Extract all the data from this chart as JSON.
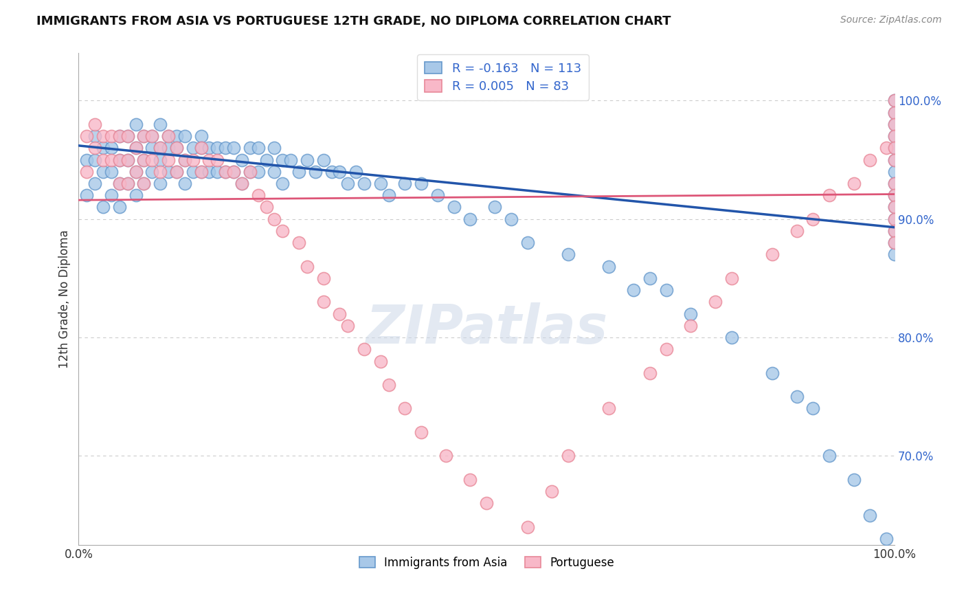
{
  "title": "IMMIGRANTS FROM ASIA VS PORTUGUESE 12TH GRADE, NO DIPLOMA CORRELATION CHART",
  "source": "Source: ZipAtlas.com",
  "ylabel": "12th Grade, No Diploma",
  "legend_blue_R": "-0.163",
  "legend_blue_N": "113",
  "legend_pink_R": "0.005",
  "legend_pink_N": "83",
  "label_blue": "Immigrants from Asia",
  "label_pink": "Portuguese",
  "ytick_labels": [
    "70.0%",
    "80.0%",
    "90.0%",
    "100.0%"
  ],
  "ytick_values": [
    0.7,
    0.8,
    0.9,
    1.0
  ],
  "xlim": [
    0.0,
    1.0
  ],
  "ylim": [
    0.625,
    1.04
  ],
  "blue_face": "#a8c8e8",
  "blue_edge": "#6699cc",
  "pink_face": "#f8b8c8",
  "pink_edge": "#e88898",
  "blue_line_color": "#2255aa",
  "pink_line_color": "#dd5577",
  "watermark": "ZIPatlas",
  "bg": "#ffffff",
  "grid_color": "#cccccc",
  "title_color": "#111111",
  "source_color": "#888888",
  "ytick_color": "#3366cc",
  "blue_trend_y0": 0.962,
  "blue_trend_y1": 0.893,
  "pink_trend_y0": 0.916,
  "pink_trend_y1": 0.921,
  "blue_x": [
    0.01,
    0.01,
    0.02,
    0.02,
    0.02,
    0.03,
    0.03,
    0.03,
    0.04,
    0.04,
    0.04,
    0.05,
    0.05,
    0.05,
    0.05,
    0.06,
    0.06,
    0.06,
    0.07,
    0.07,
    0.07,
    0.07,
    0.08,
    0.08,
    0.08,
    0.09,
    0.09,
    0.09,
    0.1,
    0.1,
    0.1,
    0.1,
    0.11,
    0.11,
    0.11,
    0.12,
    0.12,
    0.12,
    0.13,
    0.13,
    0.13,
    0.14,
    0.14,
    0.15,
    0.15,
    0.15,
    0.16,
    0.16,
    0.17,
    0.17,
    0.18,
    0.18,
    0.19,
    0.19,
    0.2,
    0.2,
    0.21,
    0.21,
    0.22,
    0.22,
    0.23,
    0.24,
    0.24,
    0.25,
    0.25,
    0.26,
    0.27,
    0.28,
    0.29,
    0.3,
    0.31,
    0.32,
    0.33,
    0.34,
    0.35,
    0.37,
    0.38,
    0.4,
    0.42,
    0.44,
    0.46,
    0.48,
    0.51,
    0.53,
    0.55,
    0.6,
    0.65,
    0.68,
    0.7,
    0.72,
    0.75,
    0.8,
    0.85,
    0.88,
    0.9,
    0.92,
    0.95,
    0.97,
    0.99,
    1.0,
    1.0,
    1.0,
    1.0,
    1.0,
    1.0,
    1.0,
    1.0,
    1.0,
    1.0,
    1.0,
    1.0,
    1.0,
    1.0
  ],
  "blue_y": [
    0.95,
    0.92,
    0.97,
    0.95,
    0.93,
    0.96,
    0.94,
    0.91,
    0.96,
    0.94,
    0.92,
    0.97,
    0.95,
    0.93,
    0.91,
    0.97,
    0.95,
    0.93,
    0.98,
    0.96,
    0.94,
    0.92,
    0.97,
    0.95,
    0.93,
    0.97,
    0.96,
    0.94,
    0.98,
    0.96,
    0.95,
    0.93,
    0.97,
    0.96,
    0.94,
    0.97,
    0.96,
    0.94,
    0.97,
    0.95,
    0.93,
    0.96,
    0.94,
    0.97,
    0.96,
    0.94,
    0.96,
    0.94,
    0.96,
    0.94,
    0.96,
    0.94,
    0.96,
    0.94,
    0.95,
    0.93,
    0.96,
    0.94,
    0.96,
    0.94,
    0.95,
    0.96,
    0.94,
    0.95,
    0.93,
    0.95,
    0.94,
    0.95,
    0.94,
    0.95,
    0.94,
    0.94,
    0.93,
    0.94,
    0.93,
    0.93,
    0.92,
    0.93,
    0.93,
    0.92,
    0.91,
    0.9,
    0.91,
    0.9,
    0.88,
    0.87,
    0.86,
    0.84,
    0.85,
    0.84,
    0.82,
    0.8,
    0.77,
    0.75,
    0.74,
    0.7,
    0.68,
    0.65,
    0.63,
    1.0,
    0.99,
    0.98,
    0.97,
    0.96,
    0.95,
    0.94,
    0.93,
    0.92,
    0.91,
    0.9,
    0.89,
    0.88,
    0.87
  ],
  "pink_x": [
    0.01,
    0.01,
    0.02,
    0.02,
    0.03,
    0.03,
    0.04,
    0.04,
    0.05,
    0.05,
    0.05,
    0.06,
    0.06,
    0.06,
    0.07,
    0.07,
    0.08,
    0.08,
    0.08,
    0.09,
    0.09,
    0.1,
    0.1,
    0.11,
    0.11,
    0.12,
    0.12,
    0.13,
    0.14,
    0.15,
    0.15,
    0.16,
    0.17,
    0.18,
    0.19,
    0.2,
    0.21,
    0.22,
    0.23,
    0.24,
    0.25,
    0.27,
    0.28,
    0.3,
    0.3,
    0.32,
    0.33,
    0.35,
    0.37,
    0.38,
    0.4,
    0.42,
    0.45,
    0.48,
    0.5,
    0.55,
    0.58,
    0.6,
    0.65,
    0.7,
    0.72,
    0.75,
    0.78,
    0.8,
    0.85,
    0.88,
    0.9,
    0.92,
    0.95,
    0.97,
    0.99,
    1.0,
    1.0,
    1.0,
    1.0,
    1.0,
    1.0,
    1.0,
    1.0,
    1.0,
    1.0,
    1.0,
    1.0
  ],
  "pink_y": [
    0.97,
    0.94,
    0.98,
    0.96,
    0.97,
    0.95,
    0.97,
    0.95,
    0.97,
    0.95,
    0.93,
    0.97,
    0.95,
    0.93,
    0.96,
    0.94,
    0.97,
    0.95,
    0.93,
    0.97,
    0.95,
    0.96,
    0.94,
    0.97,
    0.95,
    0.96,
    0.94,
    0.95,
    0.95,
    0.96,
    0.94,
    0.95,
    0.95,
    0.94,
    0.94,
    0.93,
    0.94,
    0.92,
    0.91,
    0.9,
    0.89,
    0.88,
    0.86,
    0.85,
    0.83,
    0.82,
    0.81,
    0.79,
    0.78,
    0.76,
    0.74,
    0.72,
    0.7,
    0.68,
    0.66,
    0.64,
    0.67,
    0.7,
    0.74,
    0.77,
    0.79,
    0.81,
    0.83,
    0.85,
    0.87,
    0.89,
    0.9,
    0.92,
    0.93,
    0.95,
    0.96,
    1.0,
    0.99,
    0.98,
    0.97,
    0.96,
    0.95,
    0.93,
    0.92,
    0.91,
    0.9,
    0.89,
    0.88
  ]
}
